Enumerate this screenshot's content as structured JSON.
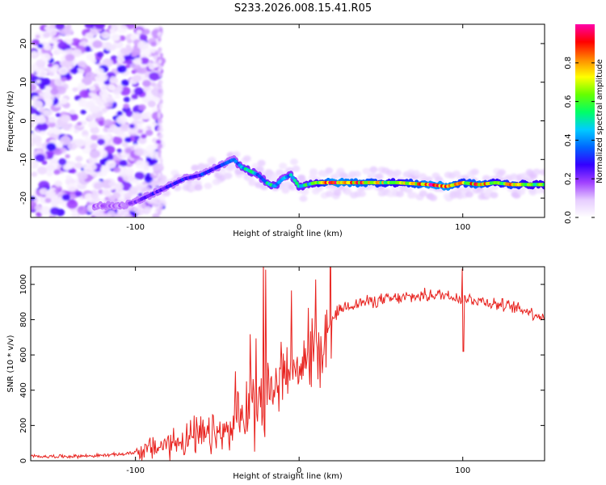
{
  "title": "S233.2026.008.15.41.R05",
  "chart_data": [
    {
      "type": "heatmap",
      "xlabel": "Height of straight line (km)",
      "ylabel": "Frequency (Hz)",
      "xlim": [
        -164,
        150
      ],
      "ylim": [
        -25,
        25
      ],
      "x_ticks": [
        -100,
        0,
        100
      ],
      "y_ticks": [
        -20,
        -10,
        0,
        10,
        20
      ],
      "colorbar": {
        "label": "Normalized spectral amplitude",
        "range": [
          0,
          1
        ],
        "ticks": [
          "0.0",
          "0.2",
          "0.4",
          "0.6",
          "0.8"
        ],
        "colors": [
          "#ffffff",
          "#e6ccff",
          "#a040ff",
          "#3300ff",
          "#0066ff",
          "#00ccff",
          "#00ff66",
          "#66ff00",
          "#ffff00",
          "#ff8800",
          "#ff0000",
          "#ff00aa"
        ]
      },
      "ridge": {
        "x": [
          -110,
          -100,
          -90,
          -80,
          -70,
          -60,
          -50,
          -40,
          -35,
          -30,
          -25,
          -20,
          -15,
          -10,
          -5,
          0,
          10,
          20,
          40,
          60,
          80,
          90,
          100,
          110,
          120,
          130,
          140,
          150
        ],
        "y": [
          -22,
          -21,
          -19,
          -17,
          -15,
          -14,
          -12,
          -10,
          -12,
          -13,
          -14,
          -16,
          -17,
          -15,
          -14,
          -17,
          -16,
          -16,
          -16,
          -16,
          -16.5,
          -17,
          -16,
          -16.5,
          -16,
          -16.5,
          -16.5,
          -16.5
        ],
        "amplitude": [
          0.15,
          0.2,
          0.25,
          0.25,
          0.3,
          0.3,
          0.3,
          0.35,
          0.45,
          0.5,
          0.4,
          0.45,
          0.5,
          0.4,
          0.45,
          0.5,
          0.55,
          0.9,
          0.8,
          0.6,
          0.9,
          0.9,
          0.7,
          0.85,
          0.6,
          0.75,
          0.6,
          0.6
        ]
      }
    },
    {
      "type": "line",
      "xlabel": "Height of straight line (km)",
      "ylabel": "SNR (10 * v/v)",
      "xlim": [
        -164,
        150
      ],
      "ylim": [
        0,
        1100
      ],
      "x_ticks": [
        -100,
        0,
        100
      ],
      "y_ticks": [
        0,
        200,
        400,
        600,
        800,
        1000
      ],
      "series": [
        {
          "color": "#e8221e",
          "x": [
            -164,
            -140,
            -120,
            -105,
            -95,
            -85,
            -75,
            -65,
            -55,
            -45,
            -40,
            -35,
            -30,
            -25,
            -20,
            -15,
            -10,
            -5,
            0,
            5,
            10,
            15,
            20,
            25,
            30,
            40,
            50,
            60,
            70,
            80,
            90,
            100,
            110,
            120,
            130,
            140,
            150
          ],
          "y": [
            25,
            25,
            30,
            40,
            60,
            80,
            110,
            130,
            140,
            150,
            180,
            230,
            300,
            380,
            400,
            450,
            500,
            520,
            560,
            580,
            600,
            680,
            800,
            860,
            880,
            900,
            910,
            920,
            930,
            940,
            940,
            920,
            910,
            890,
            870,
            850,
            810
          ]
        }
      ]
    }
  ]
}
